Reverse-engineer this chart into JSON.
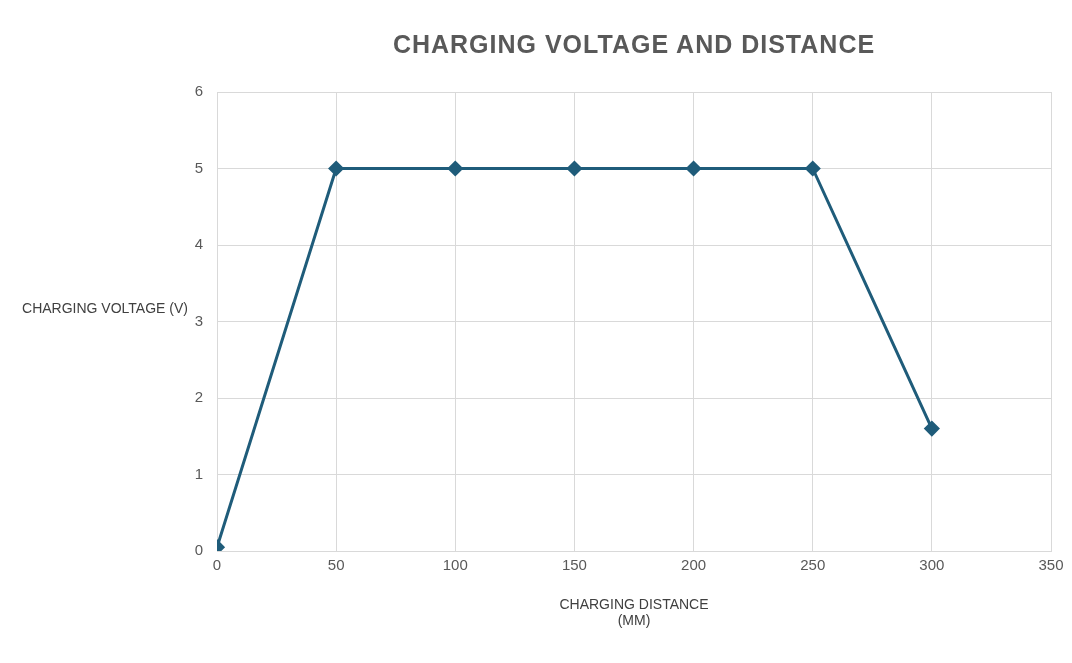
{
  "chart_data": {
    "type": "line",
    "title": "CHARGING VOLTAGE AND DISTANCE",
    "xlabel": "CHARGING DISTANCE (MM)",
    "ylabel": "CHARGING VOLTAGE (V)",
    "x": [
      0,
      50,
      100,
      150,
      200,
      250,
      300
    ],
    "series": [
      {
        "color": "#1f5c7a",
        "values": [
          0.05,
          5,
          5,
          5,
          5,
          5,
          1.6
        ]
      }
    ],
    "xlim": [
      0,
      350
    ],
    "xticks": [
      0,
      50,
      100,
      150,
      200,
      250,
      300,
      350
    ],
    "ylim": [
      0,
      6
    ],
    "yticks": [
      0,
      1,
      2,
      3,
      4,
      5,
      6
    ],
    "grid": true,
    "legend": false,
    "marker": "diamond",
    "line_style": "solid"
  }
}
